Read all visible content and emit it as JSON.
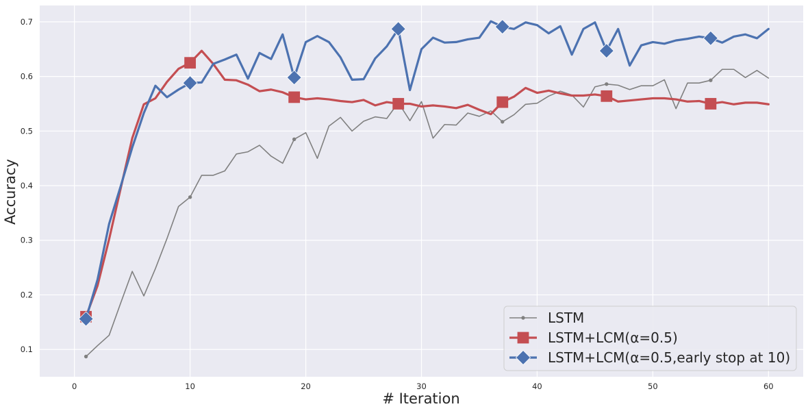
{
  "chart_data": {
    "type": "line",
    "title": "",
    "xlabel": "# Iteration",
    "ylabel": "Accuracy",
    "xlim": [
      -3,
      63
    ],
    "ylim": [
      0.05,
      0.73
    ],
    "xticks": [
      0,
      10,
      20,
      30,
      40,
      50,
      60
    ],
    "yticks": [
      0.1,
      0.2,
      0.3,
      0.4,
      0.5,
      0.6,
      0.7
    ],
    "grid": true,
    "background_color": "#EAEAF2",
    "legend_position": "bottom-right",
    "series": [
      {
        "name": "LSTM",
        "color": "#808080",
        "marker": "dot",
        "marker_every": 9,
        "x": [
          1,
          2,
          3,
          4,
          5,
          6,
          7,
          8,
          9,
          10,
          11,
          12,
          13,
          14,
          15,
          16,
          17,
          18,
          19,
          20,
          21,
          22,
          23,
          24,
          25,
          26,
          27,
          28,
          29,
          30,
          31,
          32,
          33,
          34,
          35,
          36,
          37,
          38,
          39,
          40,
          41,
          42,
          43,
          44,
          45,
          46,
          47,
          48,
          49,
          50,
          51,
          52,
          53,
          54,
          55,
          56,
          57,
          58,
          59,
          60
        ],
        "y": [
          0.087,
          0.107,
          0.126,
          0.185,
          0.243,
          0.198,
          0.248,
          0.303,
          0.362,
          0.379,
          0.419,
          0.419,
          0.427,
          0.458,
          0.462,
          0.474,
          0.454,
          0.441,
          0.485,
          0.497,
          0.45,
          0.509,
          0.525,
          0.5,
          0.518,
          0.526,
          0.523,
          0.552,
          0.519,
          0.554,
          0.487,
          0.512,
          0.511,
          0.533,
          0.527,
          0.537,
          0.517,
          0.53,
          0.549,
          0.551,
          0.564,
          0.573,
          0.566,
          0.544,
          0.581,
          0.586,
          0.584,
          0.576,
          0.583,
          0.583,
          0.594,
          0.541,
          0.588,
          0.588,
          0.593,
          0.613,
          0.613,
          0.598,
          0.611,
          0.597
        ]
      },
      {
        "name": "LSTM+LCM(α=0.5)",
        "color": "#C44E52",
        "marker": "square",
        "marker_every": 9,
        "x": [
          1,
          2,
          3,
          4,
          5,
          6,
          7,
          8,
          9,
          10,
          11,
          12,
          13,
          14,
          15,
          16,
          17,
          18,
          19,
          20,
          21,
          22,
          23,
          24,
          25,
          26,
          27,
          28,
          29,
          30,
          31,
          32,
          33,
          34,
          35,
          36,
          37,
          38,
          39,
          40,
          41,
          42,
          43,
          44,
          45,
          46,
          47,
          48,
          49,
          50,
          51,
          52,
          53,
          54,
          55,
          56,
          57,
          58,
          59,
          60
        ],
        "y": [
          0.16,
          0.217,
          0.302,
          0.395,
          0.487,
          0.549,
          0.56,
          0.59,
          0.614,
          0.625,
          0.647,
          0.623,
          0.594,
          0.593,
          0.585,
          0.573,
          0.576,
          0.571,
          0.562,
          0.558,
          0.56,
          0.558,
          0.555,
          0.553,
          0.557,
          0.547,
          0.553,
          0.55,
          0.55,
          0.545,
          0.547,
          0.545,
          0.542,
          0.548,
          0.539,
          0.531,
          0.553,
          0.563,
          0.579,
          0.57,
          0.574,
          0.569,
          0.565,
          0.565,
          0.567,
          0.564,
          0.554,
          0.556,
          0.558,
          0.56,
          0.56,
          0.558,
          0.554,
          0.555,
          0.55,
          0.553,
          0.549,
          0.552,
          0.552,
          0.549
        ]
      },
      {
        "name": "LSTM+LCM(α=0.5,early stop at 10)",
        "color": "#4C72B0",
        "marker": "diamond",
        "marker_every": 9,
        "x": [
          1,
          2,
          3,
          4,
          5,
          6,
          7,
          8,
          9,
          10,
          11,
          12,
          13,
          14,
          15,
          16,
          17,
          18,
          19,
          20,
          21,
          22,
          23,
          24,
          25,
          26,
          27,
          28,
          29,
          30,
          31,
          32,
          33,
          34,
          35,
          36,
          37,
          38,
          39,
          40,
          41,
          42,
          43,
          44,
          45,
          46,
          47,
          48,
          49,
          50,
          51,
          52,
          53,
          54,
          55,
          56,
          57,
          58,
          59,
          60
        ],
        "y": [
          0.156,
          0.228,
          0.33,
          0.399,
          0.47,
          0.533,
          0.583,
          0.562,
          0.576,
          0.588,
          0.589,
          0.623,
          0.631,
          0.64,
          0.596,
          0.643,
          0.632,
          0.677,
          0.598,
          0.663,
          0.674,
          0.663,
          0.635,
          0.594,
          0.595,
          0.633,
          0.655,
          0.687,
          0.575,
          0.65,
          0.671,
          0.662,
          0.663,
          0.668,
          0.671,
          0.701,
          0.691,
          0.687,
          0.699,
          0.694,
          0.679,
          0.692,
          0.64,
          0.687,
          0.699,
          0.647,
          0.687,
          0.62,
          0.657,
          0.663,
          0.66,
          0.666,
          0.669,
          0.673,
          0.67,
          0.662,
          0.673,
          0.677,
          0.67,
          0.687
        ]
      }
    ]
  }
}
